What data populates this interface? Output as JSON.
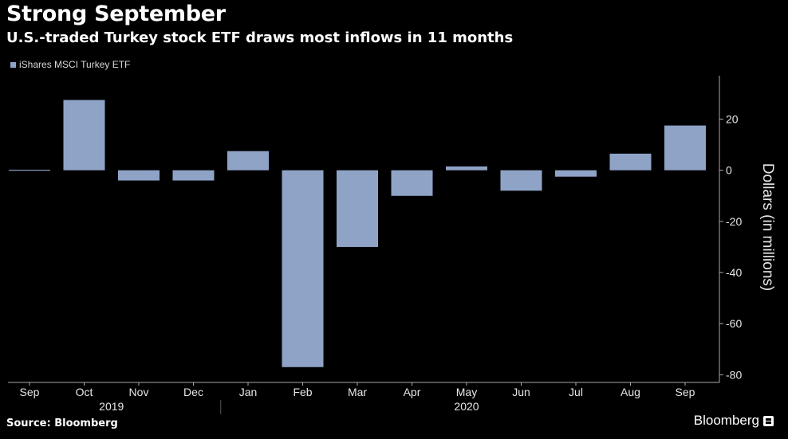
{
  "header": {
    "title": "Strong September",
    "subtitle": "U.S.-traded Turkey stock ETF draws most inflows in 11 months"
  },
  "footer": {
    "source": "Source: Bloomberg",
    "brand": "Bloomberg"
  },
  "colors": {
    "background": "#000000",
    "bar": "#8fa3c7",
    "text": "#ffffff",
    "axis": "#aaaaaa"
  },
  "chart_data": {
    "type": "bar",
    "title": "Strong September",
    "subtitle": "U.S.-traded Turkey stock ETF draws most inflows in 11 months",
    "xlabel": "",
    "ylabel": "Dollars (in millions)",
    "categories": [
      "Sep",
      "Oct",
      "Nov",
      "Dec",
      "Jan",
      "Feb",
      "Mar",
      "Apr",
      "May",
      "Jun",
      "Jul",
      "Aug",
      "Sep"
    ],
    "year_labels": [
      {
        "label": "2019",
        "from": 0,
        "to": 3
      },
      {
        "label": "2020",
        "from": 4,
        "to": 12
      }
    ],
    "series": [
      {
        "name": "iShares MSCI Turkey ETF",
        "values": [
          0.2,
          27.5,
          -4,
          -4,
          7.5,
          -77,
          -30,
          -10,
          1.5,
          -8,
          -2.5,
          6.5,
          17.5
        ]
      }
    ],
    "ylim": [
      -83,
      37
    ],
    "yticks": [
      20,
      0,
      -20,
      -40,
      -60,
      -80
    ],
    "ytick_labels": [
      "20",
      "0",
      "-20",
      "-40",
      "-60",
      "-80"
    ],
    "axis_side": "right",
    "grid": false,
    "legend": "top-left"
  }
}
